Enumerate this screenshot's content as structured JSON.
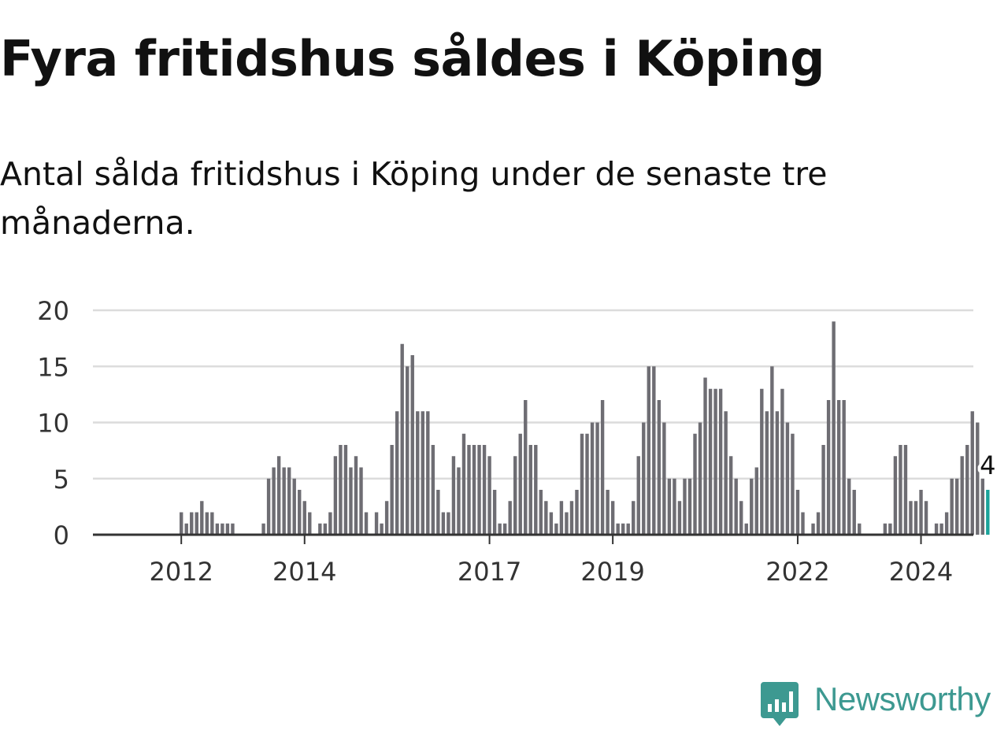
{
  "title": "Fyra fritidshus såldes i Köping",
  "subtitle": "Antal sålda fritidshus i Köping under de senaste tre månaderna.",
  "brand": {
    "name": "Newsworthy",
    "icon": "newsworthy-logo-icon",
    "color": "#3d9991"
  },
  "chart_data": {
    "type": "bar",
    "title": "",
    "xlabel": "",
    "ylabel": "",
    "ylim": [
      0,
      20
    ],
    "yticks": [
      0,
      5,
      10,
      15,
      20
    ],
    "grid": true,
    "bar_color": "#6e6d73",
    "highlight_color": "#1aa39a",
    "first_month": "2011-04",
    "x_tick_labels": [
      {
        "label": "2012",
        "date": "2012-01"
      },
      {
        "label": "2014",
        "date": "2014-01"
      },
      {
        "label": "2017",
        "date": "2017-01"
      },
      {
        "label": "2019",
        "date": "2019-01"
      },
      {
        "label": "2022",
        "date": "2022-01"
      },
      {
        "label": "2024",
        "date": "2024-01"
      }
    ],
    "values": [
      0,
      0,
      0,
      0,
      0,
      0,
      0,
      0,
      0,
      2,
      1,
      2,
      2,
      3,
      2,
      2,
      1,
      1,
      1,
      1,
      0,
      0,
      0,
      0,
      0,
      1,
      5,
      6,
      7,
      6,
      6,
      5,
      4,
      3,
      2,
      0,
      1,
      1,
      2,
      7,
      8,
      8,
      6,
      7,
      6,
      2,
      0,
      2,
      1,
      3,
      8,
      11,
      17,
      15,
      16,
      11,
      11,
      11,
      8,
      4,
      2,
      2,
      7,
      6,
      9,
      8,
      8,
      8,
      8,
      7,
      4,
      1,
      1,
      3,
      7,
      9,
      12,
      8,
      8,
      4,
      3,
      2,
      1,
      3,
      2,
      3,
      4,
      9,
      9,
      10,
      10,
      12,
      4,
      3,
      1,
      1,
      1,
      3,
      7,
      10,
      15,
      15,
      12,
      10,
      5,
      5,
      3,
      5,
      5,
      9,
      10,
      14,
      13,
      13,
      13,
      11,
      7,
      5,
      3,
      1,
      5,
      6,
      13,
      11,
      15,
      11,
      13,
      10,
      9,
      4,
      2,
      0,
      1,
      2,
      8,
      12,
      19,
      12,
      12,
      5,
      4,
      1,
      0,
      0,
      0,
      0,
      1,
      1,
      7,
      8,
      8,
      3,
      3,
      4,
      3,
      0,
      1,
      1,
      2,
      5,
      5,
      7,
      8,
      11,
      10,
      5,
      4
    ],
    "highlight": {
      "label": "4",
      "value": 4,
      "date": "2025-07"
    }
  }
}
